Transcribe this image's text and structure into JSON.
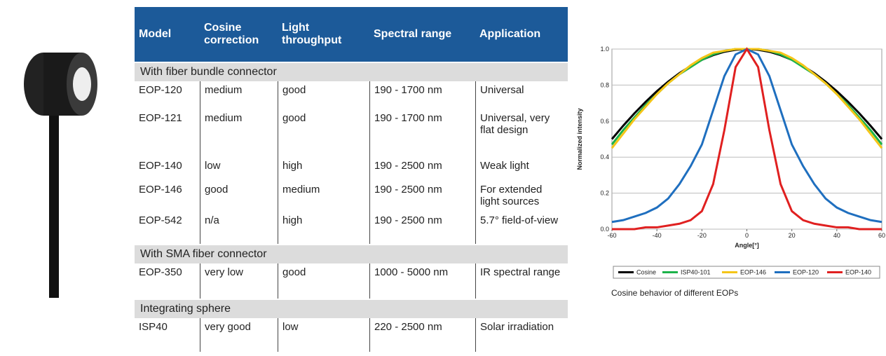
{
  "table": {
    "header": [
      "Model",
      "Cosine correction",
      "Light throughput",
      "Spectral range",
      "Application"
    ],
    "groups": [
      {
        "title": "With fiber bundle connector",
        "rows": [
          [
            "EOP-120",
            "medium",
            "good",
            "190 - 1700 nm",
            "Universal"
          ],
          [
            "EOP-121",
            "medium",
            "good",
            "190 - 1700 nm",
            "Universal, very flat design"
          ],
          [
            "EOP-140",
            "low",
            "high",
            "190 - 2500 nm",
            "Weak light"
          ],
          [
            "EOP-146",
            "good",
            "medium",
            "190 - 2500 nm",
            "For extended light sources"
          ],
          [
            "EOP-542",
            "n/a",
            "high",
            "190 - 2500 nm",
            "5.7° field-of-view"
          ]
        ]
      },
      {
        "title": "With SMA fiber connector",
        "rows": [
          [
            "EOP-350",
            "very low",
            "good",
            "1000 - 5000 nm",
            "IR spectral range"
          ]
        ]
      },
      {
        "title": "Integrating sphere",
        "rows": [
          [
            "ISP40",
            "very good",
            "low",
            "220 - 2500 nm",
            "Solar irradiation"
          ]
        ]
      }
    ]
  },
  "chart_data": {
    "type": "line",
    "caption": "Cosine behavior of different EOPs",
    "x_label": "Angle[°]",
    "y_label": "Normalized intensity",
    "x": [
      -60,
      -55,
      -50,
      -45,
      -40,
      -35,
      -30,
      -25,
      -20,
      -15,
      -10,
      -5,
      0,
      5,
      10,
      15,
      20,
      25,
      30,
      35,
      40,
      45,
      50,
      55,
      60
    ],
    "series": [
      {
        "name": "Cosine",
        "color": "#000000",
        "values": [
          0.5,
          0.574,
          0.643,
          0.707,
          0.766,
          0.819,
          0.866,
          0.906,
          0.94,
          0.966,
          0.985,
          0.996,
          1.0,
          0.996,
          0.985,
          0.966,
          0.94,
          0.906,
          0.866,
          0.819,
          0.766,
          0.707,
          0.643,
          0.574,
          0.5
        ]
      },
      {
        "name": "ISP40-101",
        "color": "#1db34a",
        "values": [
          0.47,
          0.55,
          0.62,
          0.69,
          0.75,
          0.81,
          0.86,
          0.9,
          0.94,
          0.97,
          0.99,
          1.0,
          1.0,
          1.0,
          0.99,
          0.97,
          0.94,
          0.9,
          0.86,
          0.81,
          0.75,
          0.69,
          0.62,
          0.55,
          0.47
        ]
      },
      {
        "name": "EOP-146",
        "color": "#f5c518",
        "values": [
          0.45,
          0.53,
          0.61,
          0.68,
          0.75,
          0.81,
          0.86,
          0.91,
          0.95,
          0.98,
          0.99,
          1.0,
          1.0,
          1.0,
          0.99,
          0.98,
          0.95,
          0.91,
          0.86,
          0.81,
          0.75,
          0.68,
          0.61,
          0.53,
          0.45
        ]
      },
      {
        "name": "EOP-120",
        "color": "#1f6fbf",
        "values": [
          0.04,
          0.05,
          0.07,
          0.09,
          0.12,
          0.17,
          0.25,
          0.35,
          0.47,
          0.66,
          0.85,
          0.97,
          1.0,
          0.97,
          0.85,
          0.66,
          0.47,
          0.35,
          0.25,
          0.17,
          0.12,
          0.09,
          0.07,
          0.05,
          0.04
        ]
      },
      {
        "name": "EOP-140",
        "color": "#e02020",
        "values": [
          0.0,
          0.0,
          0.0,
          0.01,
          0.01,
          0.02,
          0.03,
          0.05,
          0.1,
          0.25,
          0.55,
          0.9,
          1.0,
          0.9,
          0.55,
          0.25,
          0.1,
          0.05,
          0.03,
          0.02,
          0.01,
          0.01,
          0.0,
          0.0,
          0.0
        ]
      }
    ],
    "xlim": [
      -60,
      60
    ],
    "xticks": [
      -60,
      -40,
      -20,
      0,
      20,
      40,
      60
    ],
    "ylim": [
      0,
      1
    ],
    "yticks": [
      {
        "value": 0,
        "label": "0.0"
      },
      0.2,
      0.4,
      0.6,
      0.8,
      {
        "value": 1,
        "label": "1.0"
      }
    ],
    "grid": true,
    "legend": "bottom"
  }
}
